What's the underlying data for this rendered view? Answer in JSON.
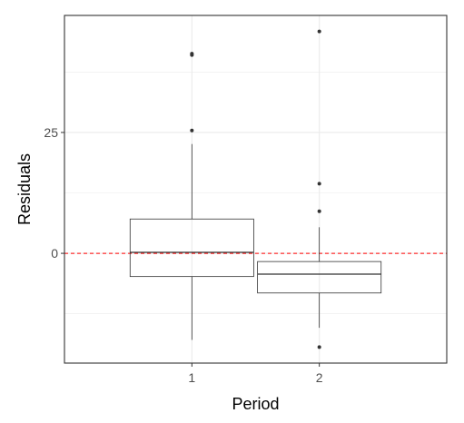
{
  "chart_data": {
    "type": "box",
    "xlabel": "Period",
    "ylabel": "Residuals",
    "ylim": [
      -22.7,
      49.2
    ],
    "y_ticks": [
      0,
      25
    ],
    "y_ticks_labels": [
      "0",
      "25"
    ],
    "categories": [
      "1",
      "2"
    ],
    "boxes": [
      {
        "category": "1",
        "whisker_low": -17.9,
        "q1": -4.8,
        "median": 0.2,
        "q3": 7.1,
        "whisker_high": 22.6,
        "outliers": [
          25.4,
          41.0,
          41.3
        ]
      },
      {
        "category": "2",
        "whisker_low": -15.4,
        "q1": -8.2,
        "median": -4.3,
        "q3": -1.7,
        "whisker_high": 5.4,
        "outliers": [
          8.7,
          14.4,
          45.9,
          -19.4
        ]
      }
    ],
    "reference_line": {
      "y": 0,
      "color": "#ff0000",
      "style": "dashed"
    },
    "grid": true,
    "colors": {
      "panel_border": "#333333",
      "grid": "#ebebeb",
      "box_line": "#333333",
      "tick_label": "#4d4d4d"
    }
  }
}
